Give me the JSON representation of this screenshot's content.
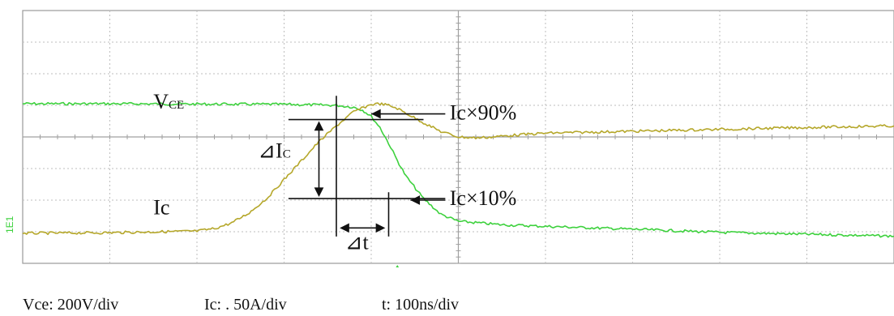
{
  "chart_data": {
    "type": "line",
    "title": "",
    "xlabel": "",
    "ylabel": "",
    "divisions": {
      "x": 10,
      "y": 8
    },
    "xlim": [
      0,
      10
    ],
    "ylim": [
      0,
      8
    ],
    "grid": true,
    "series": [
      {
        "name": "",
        "color": "#3dd13d",
        "x": [
          0,
          1,
          2,
          3,
          3.6,
          3.8,
          3.9,
          4.0,
          4.1,
          4.2,
          4.3,
          4.4,
          4.6,
          4.8,
          5.0,
          5.5,
          6.0,
          7.0,
          8.0,
          9.0,
          10.0
        ],
        "y": [
          5.05,
          5.05,
          5.04,
          5.03,
          5.0,
          4.94,
          4.85,
          4.65,
          4.3,
          3.8,
          3.25,
          2.75,
          2.05,
          1.55,
          1.33,
          1.22,
          1.17,
          1.08,
          0.98,
          0.92,
          0.86
        ]
      },
      {
        "name": "",
        "color": "#b5a72a",
        "x": [
          0,
          1,
          2,
          2.2,
          2.4,
          2.6,
          2.8,
          3.0,
          3.2,
          3.4,
          3.6,
          3.8,
          4.0,
          4.1,
          4.2,
          4.3,
          4.4,
          4.6,
          4.8,
          5.0,
          5.2,
          5.4,
          5.6,
          6.0,
          7.0,
          8.0,
          9.0,
          10.0
        ],
        "y": [
          0.95,
          0.97,
          1.02,
          1.1,
          1.28,
          1.6,
          2.05,
          2.65,
          3.25,
          3.85,
          4.35,
          4.8,
          5.03,
          5.05,
          5.0,
          4.9,
          4.75,
          4.45,
          4.17,
          4.0,
          3.97,
          4.0,
          4.05,
          4.12,
          4.18,
          4.24,
          4.3,
          4.35
        ]
      }
    ],
    "annotations": [
      {
        "id": "vce",
        "label": "V",
        "sub": "CE"
      },
      {
        "id": "ic",
        "label": "Ic"
      },
      {
        "id": "dic",
        "label": "⊿I",
        "sub": "C"
      },
      {
        "id": "dt",
        "label": "⊿t"
      },
      {
        "id": "ic90",
        "label": "Ic×90%"
      },
      {
        "id": "ic10",
        "label": "Ic×10%"
      }
    ],
    "side_marker": "1E1",
    "trigger_color": "#3dd13d"
  },
  "scales": {
    "vce": "Vce: 200V/div",
    "ic": "Ic: . 50A/div",
    "t": "t: 100ns/div"
  }
}
